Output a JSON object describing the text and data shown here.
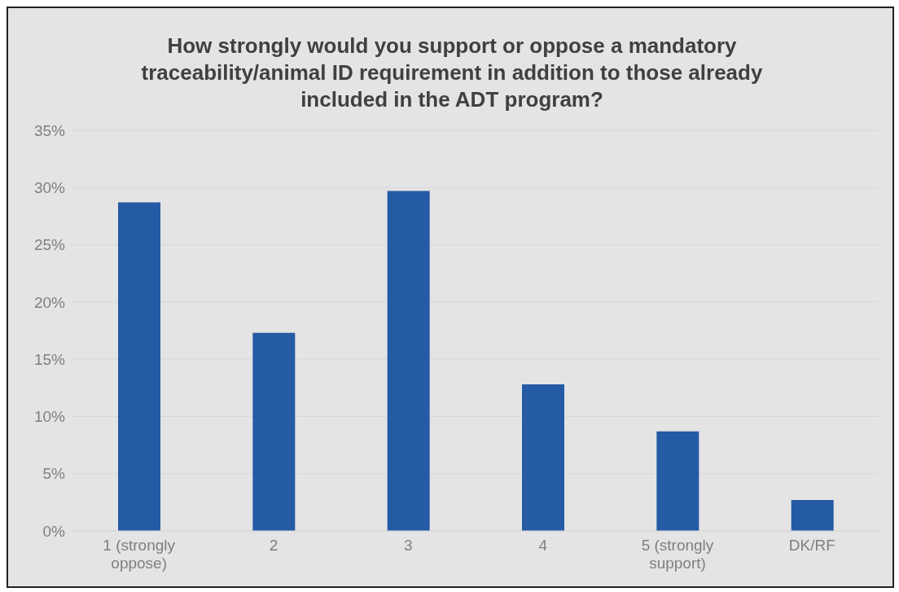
{
  "chart_data": {
    "type": "bar",
    "title": "How strongly would you support or oppose a mandatory traceability/animal ID requirement in addition to those already included in the ADT program?",
    "categories": [
      "1 (strongly oppose)",
      "2",
      "3",
      "4",
      "5 (strongly support)",
      "DK/RF"
    ],
    "values": [
      28.7,
      17.3,
      29.7,
      12.8,
      8.7,
      2.7
    ],
    "color": "#255aa5",
    "ylim": [
      0,
      35
    ],
    "yticks": [
      {
        "value": 0,
        "label": "0%"
      },
      {
        "value": 5,
        "label": "5%"
      },
      {
        "value": 10,
        "label": "10%"
      },
      {
        "value": 15,
        "label": "15%"
      },
      {
        "value": 20,
        "label": "20%"
      },
      {
        "value": 25,
        "label": "25%"
      },
      {
        "value": 30,
        "label": "30%"
      },
      {
        "value": 35,
        "label": "35%"
      }
    ],
    "grid": "y",
    "legend": false
  }
}
